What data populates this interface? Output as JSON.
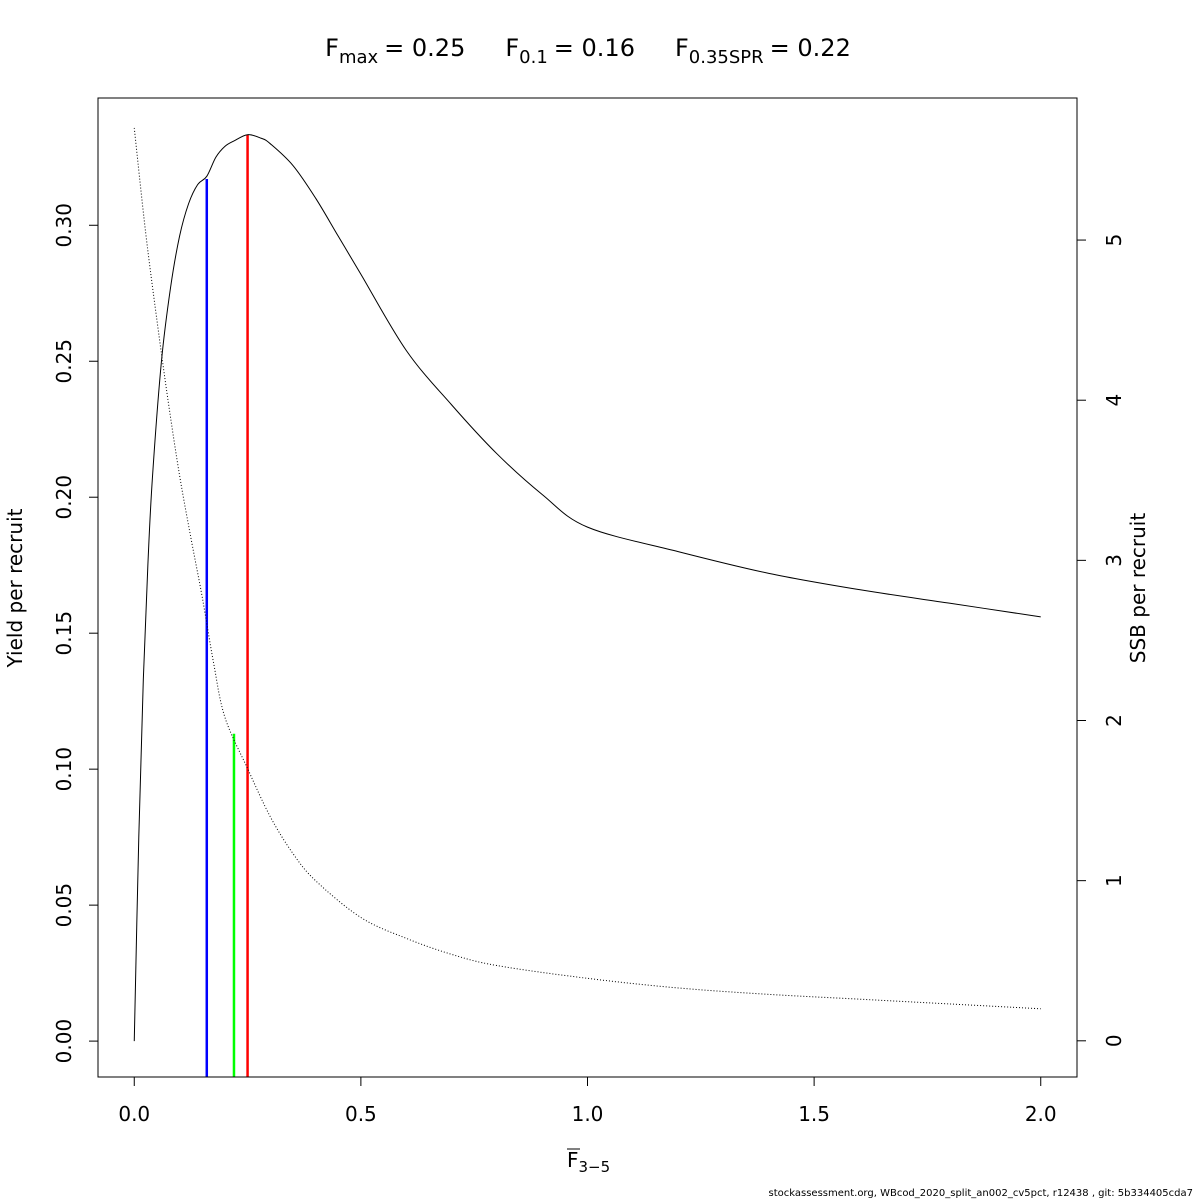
{
  "chart_data": {
    "type": "line",
    "title_parts": [
      {
        "base": "F",
        "sub": "max",
        "value": "= 0.25"
      },
      {
        "base": "F",
        "sub": "0.1",
        "value": "= 0.16"
      },
      {
        "base": "F",
        "sub": "0.35SPR",
        "value": "= 0.22"
      }
    ],
    "xlabel": {
      "base": "F",
      "sub": "3−5"
    },
    "ylabel_left": "Yield per recruit",
    "ylabel_right": "SSB per recruit",
    "xlim": [
      -0.08,
      2.08
    ],
    "ylim_left": [
      -0.0132,
      0.3468
    ],
    "ylim_right": [
      -0.226,
      5.887
    ],
    "x_ticks": [
      0.0,
      0.5,
      1.0,
      1.5,
      2.0
    ],
    "x_tick_labels": [
      "0.0",
      "0.5",
      "1.0",
      "1.5",
      "2.0"
    ],
    "y_left_ticks": [
      0.0,
      0.05,
      0.1,
      0.15,
      0.2,
      0.25,
      0.3
    ],
    "y_left_tick_labels": [
      "0.00",
      "0.05",
      "0.10",
      "0.15",
      "0.20",
      "0.25",
      "0.30"
    ],
    "y_right_ticks": [
      0,
      1,
      2,
      3,
      4,
      5
    ],
    "y_right_tick_labels": [
      "0",
      "1",
      "2",
      "3",
      "4",
      "5"
    ],
    "yield_curve": {
      "axis": "left",
      "style": "solid",
      "color": "#000000",
      "x": [
        0.0,
        0.01,
        0.02,
        0.03,
        0.04,
        0.06,
        0.08,
        0.1,
        0.12,
        0.14,
        0.16,
        0.18,
        0.2,
        0.22,
        0.25,
        0.28,
        0.3,
        0.35,
        0.4,
        0.45,
        0.5,
        0.6,
        0.7,
        0.8,
        0.9,
        1.0,
        1.2,
        1.4,
        1.6,
        1.8,
        2.0
      ],
      "y": [
        0.0,
        0.075,
        0.133,
        0.175,
        0.207,
        0.25,
        0.277,
        0.296,
        0.308,
        0.315,
        0.318,
        0.325,
        0.329,
        0.331,
        0.3333,
        0.332,
        0.33,
        0.322,
        0.31,
        0.296,
        0.282,
        0.254,
        0.234,
        0.216,
        0.201,
        0.189,
        0.18,
        0.172,
        0.166,
        0.161,
        0.156
      ]
    },
    "ssb_curve": {
      "axis": "right",
      "style": "dotted",
      "color": "#000000",
      "x": [
        0.0,
        0.025,
        0.05,
        0.075,
        0.1,
        0.125,
        0.15,
        0.175,
        0.2,
        0.25,
        0.3,
        0.35,
        0.4,
        0.5,
        0.6,
        0.7,
        0.8,
        1.0,
        1.2,
        1.4,
        1.6,
        1.8,
        2.0
      ],
      "y": [
        5.7,
        5.05,
        4.5,
        3.99,
        3.53,
        3.14,
        2.77,
        2.36,
        2.02,
        1.7,
        1.4,
        1.17,
        1.0,
        0.77,
        0.64,
        0.54,
        0.47,
        0.39,
        0.33,
        0.29,
        0.26,
        0.23,
        0.2
      ]
    },
    "reference_lines": [
      {
        "name": "F0.1",
        "x": 0.16,
        "y_top": 0.317,
        "axis": "left",
        "color": "#0000ff"
      },
      {
        "name": "F0.35SPR",
        "x": 0.22,
        "y_top": 0.113,
        "axis": "left",
        "color": "#00ff00"
      },
      {
        "name": "Fmax",
        "x": 0.25,
        "y_top": 0.3333,
        "axis": "left",
        "color": "#ff0000"
      }
    ],
    "grid": false,
    "legend": "none"
  },
  "footer": {
    "text": "stockassessment.org, WBcod_2020_split_an002_cv5pct, r12438 , git: 5b334405cda7"
  }
}
